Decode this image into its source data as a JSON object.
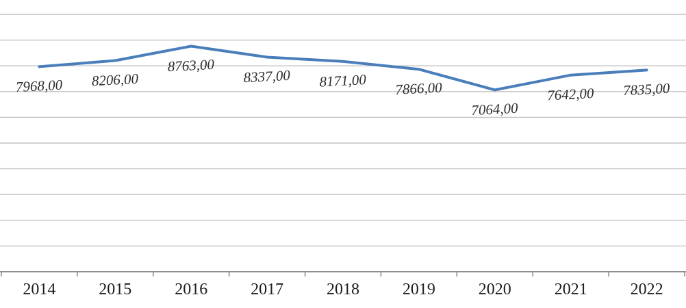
{
  "chart_data": {
    "type": "line",
    "title": "",
    "xlabel": "",
    "ylabel": "",
    "grid": true,
    "legend": "none",
    "categories": [
      "2014",
      "2015",
      "2016",
      "2017",
      "2018",
      "2019",
      "2020",
      "2021",
      "2022"
    ],
    "series": [
      {
        "name": "series-1",
        "color": "#4a7ebb",
        "values": [
          7968,
          8206,
          8763,
          8337,
          8171,
          7866,
          7064,
          7642,
          7835
        ],
        "labels": [
          "7968,00",
          "8206,00",
          "8763,00",
          "8337,00",
          "8171,00",
          "7866,00",
          "7064,00",
          "7642,00",
          "7835,00"
        ]
      }
    ],
    "value_axis": {
      "min": 0,
      "max_gridline": 10000,
      "step": 1000,
      "tick_labels_visible": false
    }
  },
  "style": {
    "background": "#ffffff",
    "grid_color": "#c2c2c2",
    "axis_color": "#8f8f8f",
    "data_label_color": "#2d2d2d",
    "year_label_color": "#1c1c1c"
  }
}
